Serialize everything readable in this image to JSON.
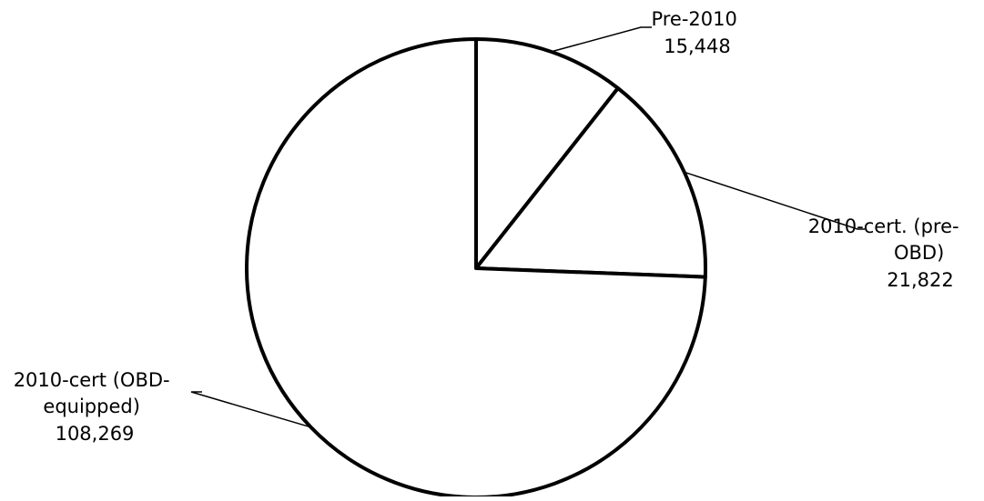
{
  "chart_data": {
    "type": "pie",
    "start_angle_deg": 0,
    "direction": "clockwise",
    "slices": [
      {
        "label_lines": [
          "Pre-2010",
          "15,448"
        ],
        "value": 15448
      },
      {
        "label_lines": [
          "2010-cert. (pre-",
          "OBD)",
          "21,822"
        ],
        "value": 21822
      },
      {
        "label_lines": [
          "2010-cert (OBD-",
          "equipped)",
          "108,269"
        ],
        "value": 108269
      }
    ],
    "colors": {
      "fill": "#ffffff",
      "stroke": "#000000",
      "leader": "#000000"
    }
  }
}
